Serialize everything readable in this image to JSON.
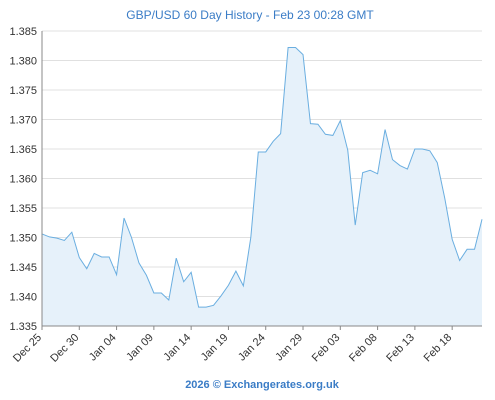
{
  "chart_data": {
    "type": "area",
    "title": "GBP/USD 60 Day History - Feb 23 00:28 GMT",
    "xlabel": "",
    "ylabel": "",
    "credit": "2026 © Exchangerates.org.uk",
    "ylim": [
      1.335,
      1.385
    ],
    "yticks": [
      "1.335",
      "1.340",
      "1.345",
      "1.350",
      "1.355",
      "1.360",
      "1.365",
      "1.370",
      "1.375",
      "1.380",
      "1.385"
    ],
    "xticks": [
      "Dec 25",
      "Dec 30",
      "Jan 04",
      "Jan 09",
      "Jan 14",
      "Jan 19",
      "Jan 24",
      "Jan 29",
      "Feb 03",
      "Feb 08",
      "Feb 13",
      "Feb 18"
    ],
    "grid": "horizontal",
    "colors": {
      "line": "#6aaee0",
      "fill": "#e6f1fa",
      "grid": "#e0e0e0",
      "axis": "#888888",
      "title": "#3a7cc6"
    },
    "series": [
      {
        "x": [
          "Dec 25",
          "Dec 26",
          "Dec 27",
          "Dec 28",
          "Dec 29",
          "Dec 30",
          "Dec 31",
          "Jan 01",
          "Jan 02",
          "Jan 03",
          "Jan 04",
          "Jan 05",
          "Jan 06",
          "Jan 07",
          "Jan 08",
          "Jan 09",
          "Jan 10",
          "Jan 11",
          "Jan 12",
          "Jan 13",
          "Jan 14",
          "Jan 15",
          "Jan 16",
          "Jan 17",
          "Jan 18",
          "Jan 19",
          "Jan 20",
          "Jan 21",
          "Jan 22",
          "Jan 23",
          "Jan 24",
          "Jan 25",
          "Jan 26",
          "Jan 27",
          "Jan 28",
          "Jan 29",
          "Jan 30",
          "Jan 31",
          "Feb 01",
          "Feb 02",
          "Feb 03",
          "Feb 04",
          "Feb 05",
          "Feb 06",
          "Feb 07",
          "Feb 08",
          "Feb 09",
          "Feb 10",
          "Feb 11",
          "Feb 12",
          "Feb 13",
          "Feb 14",
          "Feb 15",
          "Feb 16",
          "Feb 17",
          "Feb 18",
          "Feb 19",
          "Feb 20",
          "Feb 21",
          "Feb 22"
        ],
        "values": [
          1.3506,
          1.3501,
          1.3499,
          1.3495,
          1.3509,
          1.3466,
          1.3447,
          1.3473,
          1.3467,
          1.3467,
          1.3437,
          1.3533,
          1.35,
          1.3457,
          1.3436,
          1.3406,
          1.3406,
          1.3394,
          1.3465,
          1.3425,
          1.3441,
          1.3382,
          1.3382,
          1.3385,
          1.3401,
          1.3419,
          1.3443,
          1.3418,
          1.35,
          1.3645,
          1.3645,
          1.3663,
          1.3676,
          1.3822,
          1.3822,
          1.381,
          1.3693,
          1.3692,
          1.3675,
          1.3673,
          1.3698,
          1.3648,
          1.3521,
          1.361,
          1.3614,
          1.3608,
          1.3683,
          1.3632,
          1.3622,
          1.3616,
          1.365,
          1.365,
          1.3647,
          1.3627,
          1.3567,
          1.3497,
          1.3461,
          1.348,
          1.348,
          1.3531
        ]
      }
    ]
  }
}
